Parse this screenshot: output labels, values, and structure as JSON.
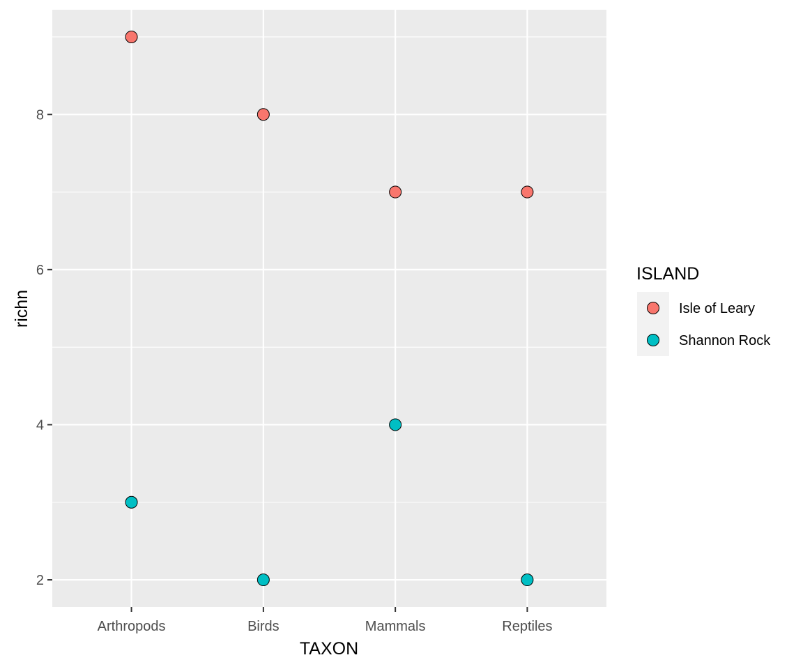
{
  "chart_data": {
    "type": "scatter",
    "xlabel": "TAXON",
    "ylabel": "richn",
    "categories": [
      "Arthropods",
      "Birds",
      "Mammals",
      "Reptiles"
    ],
    "y_ticks": [
      2,
      4,
      6,
      8
    ],
    "ylim": [
      1.65,
      9.35
    ],
    "grid": true,
    "legend": {
      "title": "ISLAND",
      "placement": "right"
    },
    "series": [
      {
        "name": "Isle of Leary",
        "color": "#F8766D",
        "values": [
          9,
          8,
          7,
          7
        ]
      },
      {
        "name": "Shannon Rock",
        "color": "#00BFC4",
        "values": [
          3,
          2,
          4,
          2
        ]
      }
    ],
    "colors": {
      "panel_bg": "#EBEBEB",
      "grid": "#FFFFFF",
      "tick_text": "#4D4D4D",
      "point_stroke": "#000000",
      "legend_key_bg": "#F2F2F2"
    }
  }
}
